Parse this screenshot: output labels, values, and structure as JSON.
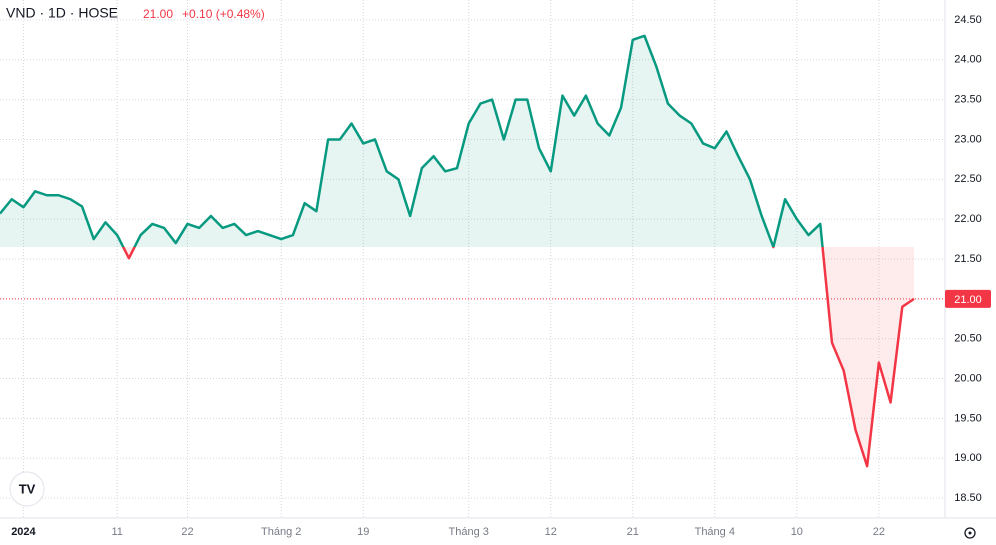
{
  "chart_data": {
    "type": "baseline",
    "title": "VND · 1D · HOSE",
    "last_price": {
      "value": 21,
      "label": "21.00"
    },
    "change": "+0.10 (+0.48%)",
    "baseline": 21.65,
    "up_color": "#089981",
    "down_color": "#f23645",
    "categories": [
      null,
      null,
      "2024",
      null,
      null,
      null,
      null,
      null,
      null,
      null,
      "11",
      null,
      null,
      null,
      null,
      null,
      "22",
      null,
      null,
      null,
      null,
      null,
      null,
      null,
      "Tháng 2",
      null,
      null,
      null,
      null,
      null,
      null,
      "19",
      null,
      null,
      null,
      null,
      null,
      null,
      null,
      null,
      "Tháng 3",
      null,
      null,
      null,
      null,
      null,
      null,
      "12",
      null,
      null,
      null,
      null,
      null,
      null,
      "21",
      null,
      null,
      null,
      null,
      null,
      null,
      "Tháng 4",
      null,
      null,
      null,
      null,
      null,
      null,
      "10",
      null,
      null,
      null,
      null,
      null,
      null,
      "22",
      null,
      null,
      null
    ],
    "values": [
      22.07,
      22.25,
      22.15,
      22.35,
      22.3,
      22.3,
      22.25,
      22.16,
      21.75,
      21.96,
      21.8,
      21.51,
      21.8,
      21.94,
      21.89,
      21.7,
      21.94,
      21.89,
      22.04,
      21.89,
      21.94,
      21.8,
      21.85,
      21.8,
      21.75,
      21.8,
      22.2,
      22.1,
      23.0,
      23.0,
      23.2,
      22.95,
      23.0,
      22.6,
      22.5,
      22.04,
      22.64,
      22.79,
      22.6,
      22.64,
      23.2,
      23.45,
      23.5,
      23.0,
      23.5,
      23.5,
      22.89,
      22.6,
      23.55,
      23.3,
      23.55,
      23.2,
      23.05,
      23.4,
      24.25,
      24.3,
      23.92,
      23.45,
      23.3,
      23.2,
      22.95,
      22.89,
      23.1,
      22.79,
      22.5,
      22.04,
      21.65,
      22.25,
      22.0,
      21.8,
      21.94,
      20.45,
      20.1,
      19.36,
      18.9,
      20.2,
      19.7,
      20.9,
      21.0
    ],
    "ylim": [
      18.25,
      24.75
    ],
    "yticks": [
      {
        "value": 18.5,
        "label": "18.50"
      },
      {
        "value": 19,
        "label": "19.00"
      },
      {
        "value": 19.5,
        "label": "19.50"
      },
      {
        "value": 20,
        "label": "20.00"
      },
      {
        "value": 20.5,
        "label": "20.50"
      },
      {
        "value": 21,
        "label": "21.00"
      },
      {
        "value": 21.5,
        "label": "21.50"
      },
      {
        "value": 22,
        "label": "22.00"
      },
      {
        "value": 22.5,
        "label": "22.50"
      },
      {
        "value": 23,
        "label": "23.00"
      },
      {
        "value": 23.5,
        "label": "23.50"
      },
      {
        "value": 24,
        "label": "24.00"
      },
      {
        "value": 24.5,
        "label": "24.50"
      }
    ],
    "grid": true
  }
}
